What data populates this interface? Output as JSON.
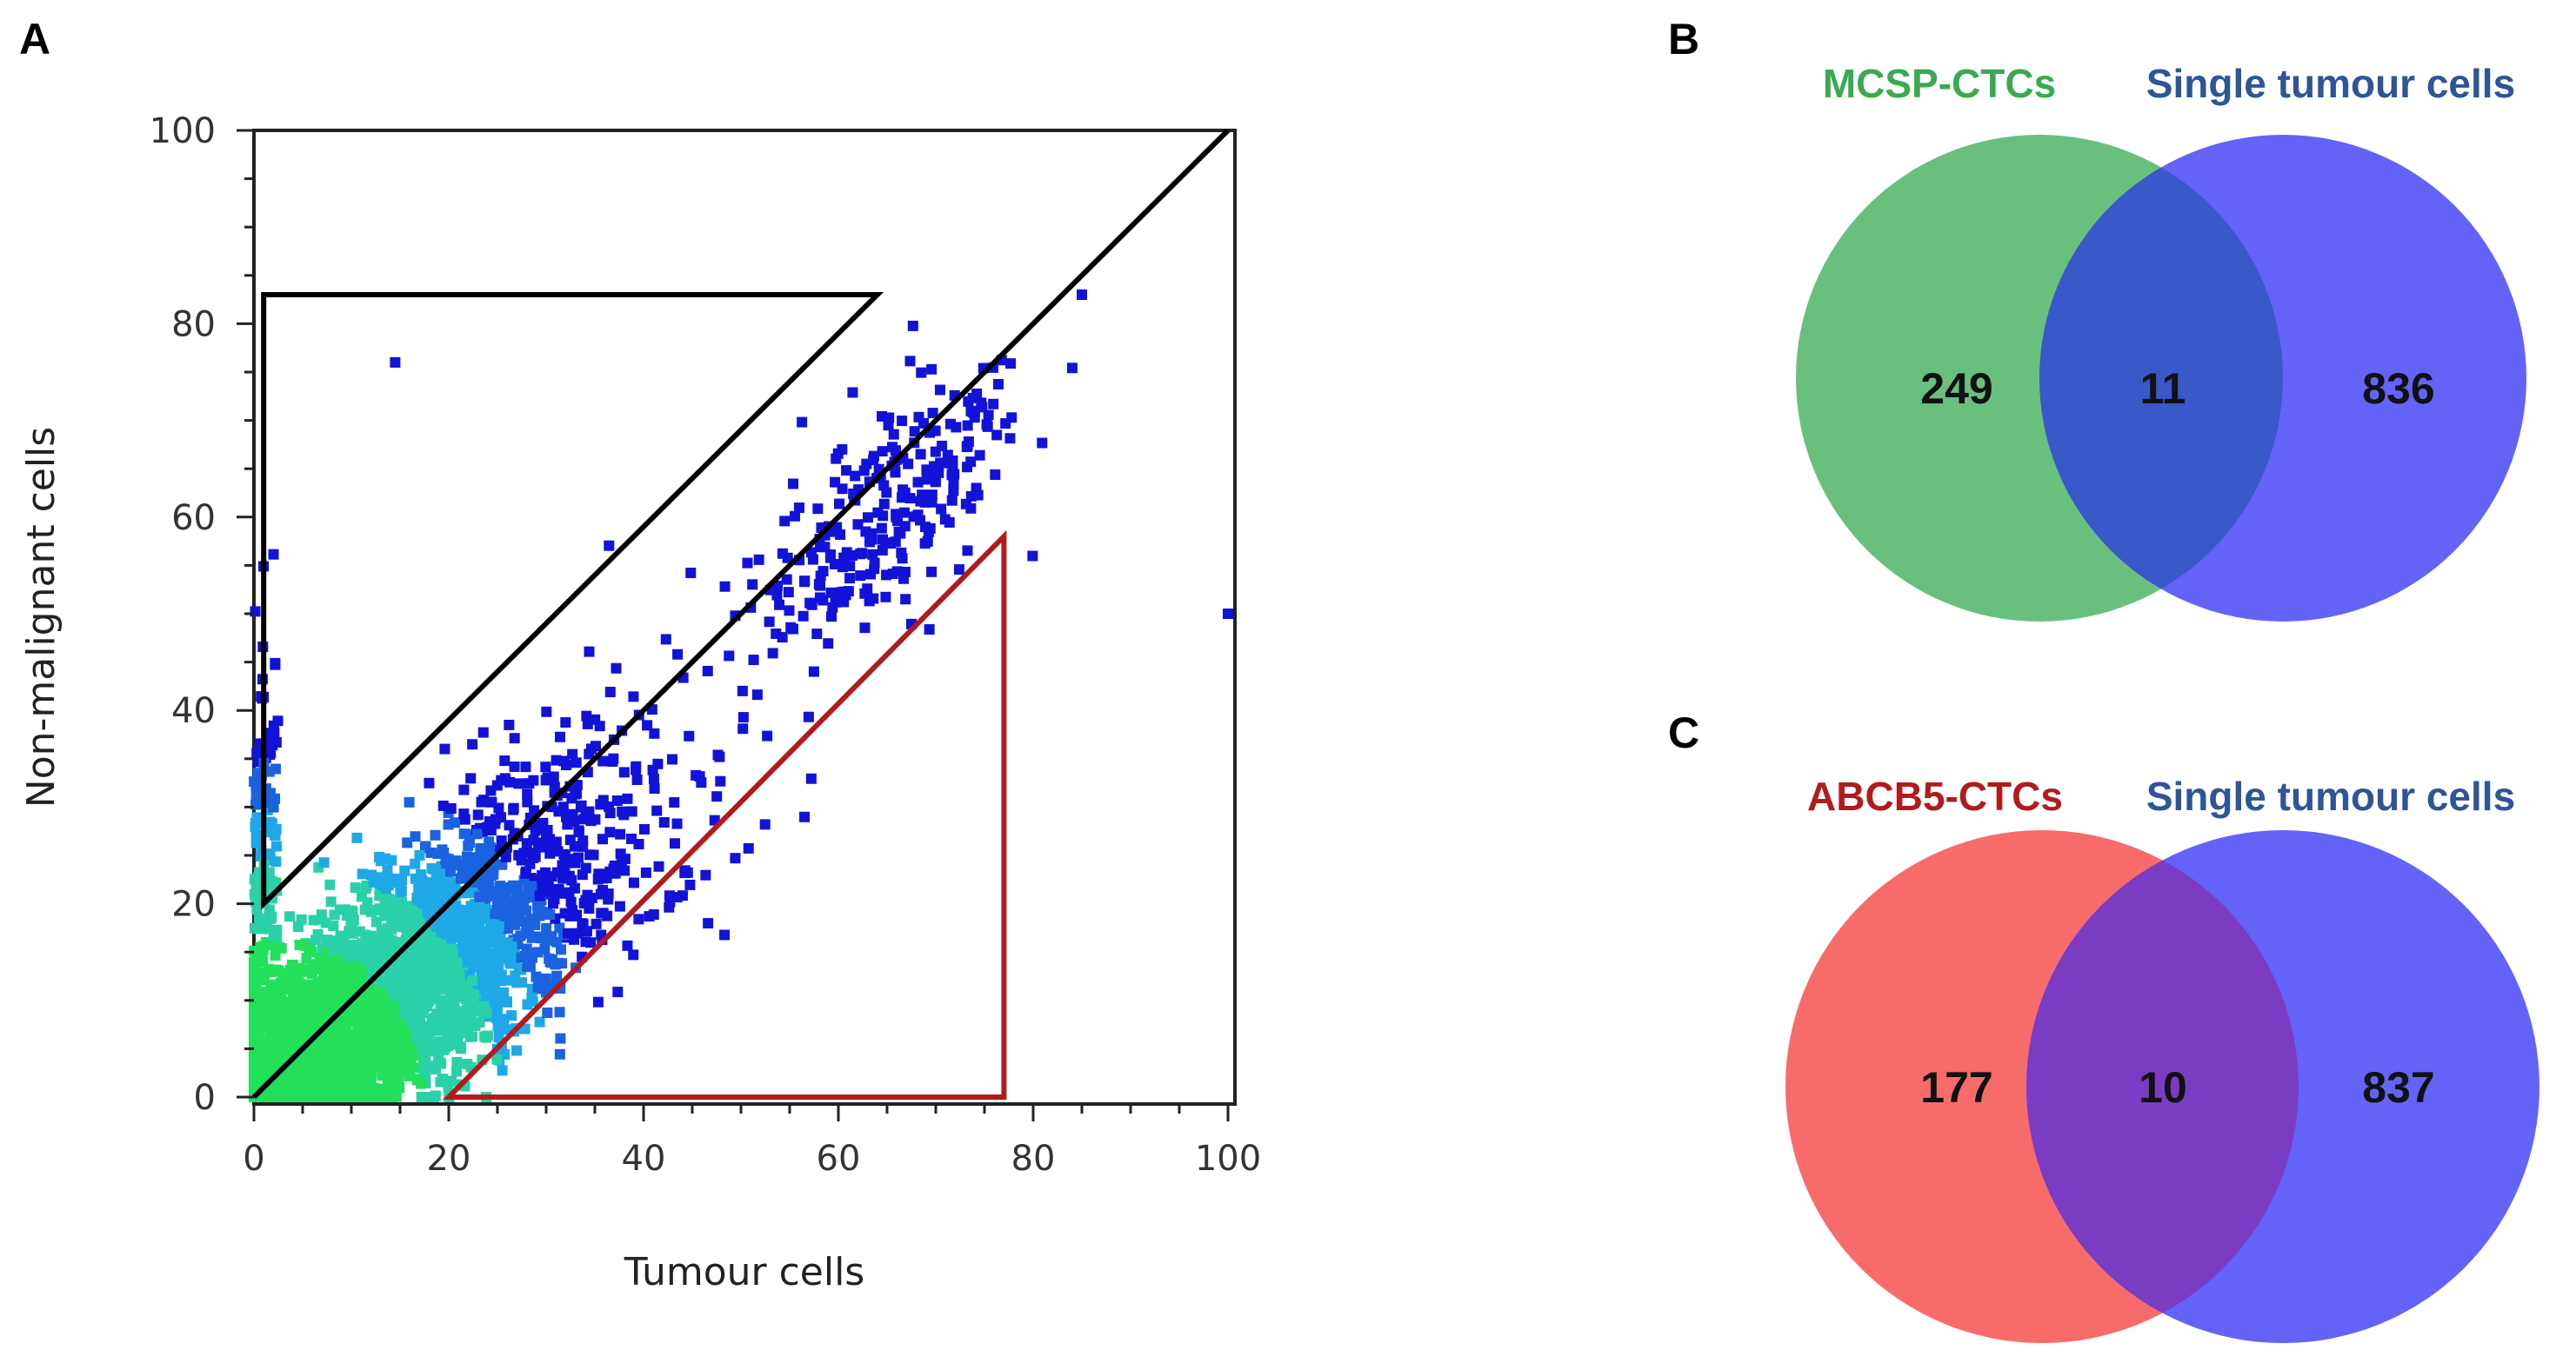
{
  "panels": {
    "a": "A",
    "b": "B",
    "c": "C"
  },
  "chart_data": [
    {
      "type": "scatter",
      "subtype": "density-scatter",
      "xlabel": "Tumour cells",
      "ylabel": "Non-malignant cells",
      "xlim": [
        0,
        100
      ],
      "ylim": [
        0,
        100
      ],
      "xticks": [
        "0",
        "20",
        "40",
        "60",
        "80",
        "100"
      ],
      "yticks": [
        "0",
        "20",
        "40",
        "60",
        "80",
        "100"
      ],
      "diagonal": [
        [
          0,
          0
        ],
        [
          100,
          100
        ]
      ],
      "gates": [
        {
          "name": "upper-gate",
          "color": "#000000",
          "points": [
            [
              1,
              20
            ],
            [
              1,
              83
            ],
            [
              64,
              83
            ]
          ]
        },
        {
          "name": "lower-gate",
          "color": "#b01c1c",
          "points": [
            [
              20,
              0
            ],
            [
              77,
              0
            ],
            [
              77,
              58
            ]
          ]
        }
      ],
      "outliers": [
        [
          100,
          50
        ],
        [
          14.5,
          76
        ],
        [
          85,
          83
        ]
      ],
      "colors": {
        "sparse": "#1212d8",
        "dense": "#22e05a",
        "mid": "#1fa8e8"
      }
    },
    {
      "type": "venn",
      "sets": [
        {
          "name": "MCSP-CTCs",
          "color": "#3aaa50",
          "fill": "#69c07d"
        },
        {
          "name": "Single tumour cells",
          "color": "#2f5597",
          "fill": "#6363f7"
        }
      ],
      "counts": {
        "only_left": "249",
        "both": "11",
        "only_right": "836"
      },
      "overlap_fill": "#3958c9"
    },
    {
      "type": "venn",
      "sets": [
        {
          "name": "ABCB5-CTCs",
          "color": "#b01c1c",
          "fill": "#f76b6b"
        },
        {
          "name": "Single tumour cells",
          "color": "#2f5597",
          "fill": "#6363f7"
        }
      ],
      "counts": {
        "only_left": "177",
        "both": "10",
        "only_right": "837"
      },
      "overlap_fill": "#7b3cc4"
    }
  ]
}
